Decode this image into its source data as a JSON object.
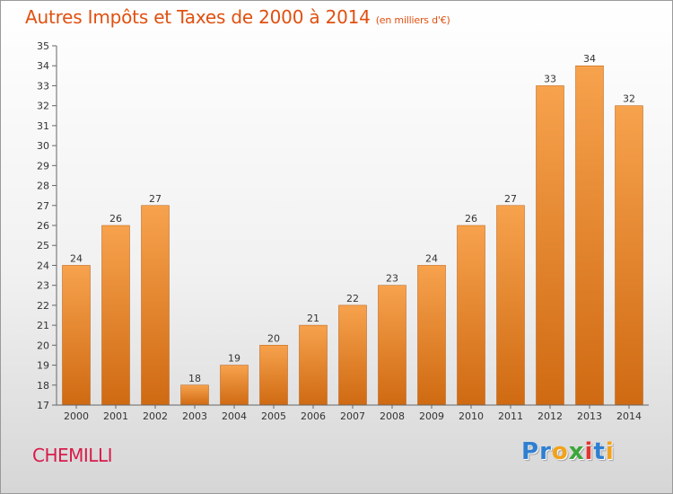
{
  "header": {
    "title": "Autres Impôts et Taxes de 2000 à 2014",
    "subtitle": "(en milliers d'€)"
  },
  "footer": {
    "city": "CHEMILLI",
    "logo": "Proxiti",
    "logo_letters": [
      {
        "ch": "P",
        "color": "#2f7fd1"
      },
      {
        "ch": "r",
        "color": "#2f7fd1"
      },
      {
        "ch": "o",
        "color": "#f2a21a"
      },
      {
        "ch": "x",
        "color": "#3da63a"
      },
      {
        "ch": "i",
        "color": "#e3342f"
      },
      {
        "ch": "t",
        "color": "#2f7fd1"
      },
      {
        "ch": "i",
        "color": "#f2a21a"
      }
    ]
  },
  "colors": {
    "bar_top": "#f7a24d",
    "bar_bottom": "#cf6a12",
    "axis": "#666666",
    "grid": "#cccccc",
    "title": "#e05010",
    "city": "#d81b4a"
  },
  "chart_data": {
    "type": "bar",
    "title": "Autres Impôts et Taxes de 2000 à 2014",
    "subtitle": "(en milliers d'€)",
    "xlabel": "",
    "ylabel": "",
    "categories": [
      "2000",
      "2001",
      "2002",
      "2003",
      "2004",
      "2005",
      "2006",
      "2007",
      "2008",
      "2009",
      "2010",
      "2011",
      "2012",
      "2013",
      "2014"
    ],
    "values": [
      24,
      26,
      27,
      18,
      19,
      20,
      21,
      22,
      23,
      24,
      26,
      27,
      33,
      34,
      32
    ],
    "ylim": [
      17,
      35
    ],
    "yticks": [
      17,
      18,
      19,
      20,
      21,
      22,
      23,
      24,
      25,
      26,
      27,
      28,
      29,
      30,
      31,
      32,
      33,
      34,
      35
    ],
    "grid": false,
    "data_labels": true
  }
}
